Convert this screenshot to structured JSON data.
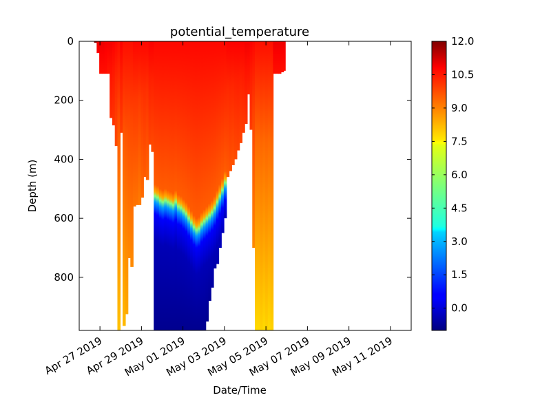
{
  "chart_data": {
    "type": "heatmap",
    "title": "potential_temperature",
    "xlabel": "Date/Time",
    "ylabel": "Depth (m)",
    "x_ticks": [
      "Apr 27 2019",
      "Apr 29 2019",
      "May 01 2019",
      "May 03 2019",
      "May 05 2019",
      "May 07 2019",
      "May 09 2019",
      "May 11 2019"
    ],
    "x_start": "2019-04-26T00:00",
    "x_end": "2019-05-12T00:00",
    "y_ticks": [
      0,
      200,
      400,
      600,
      800
    ],
    "ylim": [
      980,
      0
    ],
    "y_inverted": true,
    "colorbar": {
      "colormap": "jet",
      "vmin": -1.0,
      "vmax": 12.0,
      "ticks": [
        "12.0",
        "10.5",
        "9.0",
        "7.5",
        "6.0",
        "4.5",
        "3.0",
        "1.5",
        "0.0"
      ]
    },
    "grid": false,
    "legend": "none",
    "profiles": [
      {
        "time": "2019-04-26T19:00",
        "max_depth": 5,
        "surface_temp": 11.8,
        "deep_temp": 11.8
      },
      {
        "time": "2019-04-26T22:00",
        "max_depth": 40,
        "surface_temp": 10.6,
        "deep_temp": 10.4
      },
      {
        "time": "2019-04-27T01:00",
        "max_depth": 110,
        "surface_temp": 10.6,
        "deep_temp": 10.2
      },
      {
        "time": "2019-04-27T04:00",
        "max_depth": 110,
        "surface_temp": 10.6,
        "deep_temp": 10.2
      },
      {
        "time": "2019-04-27T07:00",
        "max_depth": 110,
        "surface_temp": 10.5,
        "deep_temp": 10.2
      },
      {
        "time": "2019-04-27T10:00",
        "max_depth": 110,
        "surface_temp": 10.5,
        "deep_temp": 10.1
      },
      {
        "time": "2019-04-27T13:00",
        "max_depth": 260,
        "surface_temp": 10.5,
        "deep_temp": 9.8
      },
      {
        "time": "2019-04-27T16:00",
        "max_depth": 285,
        "surface_temp": 10.4,
        "deep_temp": 9.7
      },
      {
        "time": "2019-04-27T19:00",
        "max_depth": 355,
        "surface_temp": 10.3,
        "deep_temp": 9.4
      },
      {
        "time": "2019-04-27T22:00",
        "max_depth": 980,
        "surface_temp": 10.2,
        "deep_temp": 7.9
      },
      {
        "time": "2019-04-28T01:00",
        "max_depth": 310,
        "surface_temp": 10.4,
        "deep_temp": 9.6
      },
      {
        "time": "2019-04-28T04:00",
        "max_depth": 965,
        "surface_temp": 10.2,
        "deep_temp": 8.0
      },
      {
        "time": "2019-04-28T07:00",
        "max_depth": 925,
        "surface_temp": 10.2,
        "deep_temp": 8.2
      },
      {
        "time": "2019-04-28T10:00",
        "max_depth": 735,
        "surface_temp": 10.2,
        "deep_temp": 8.6
      },
      {
        "time": "2019-04-28T13:00",
        "max_depth": 765,
        "surface_temp": 10.2,
        "deep_temp": 8.6
      },
      {
        "time": "2019-04-28T16:00",
        "max_depth": 560,
        "surface_temp": 10.3,
        "deep_temp": 8.9
      },
      {
        "time": "2019-04-28T19:00",
        "max_depth": 555,
        "surface_temp": 10.3,
        "deep_temp": 8.9
      },
      {
        "time": "2019-04-28T22:00",
        "max_depth": 555,
        "surface_temp": 10.3,
        "deep_temp": 8.8
      },
      {
        "time": "2019-04-29T01:00",
        "max_depth": 530,
        "surface_temp": 10.3,
        "deep_temp": 9.0
      },
      {
        "time": "2019-04-29T04:00",
        "max_depth": 460,
        "surface_temp": 10.3,
        "deep_temp": 9.2
      },
      {
        "time": "2019-04-29T07:00",
        "max_depth": 470,
        "surface_temp": 10.3,
        "deep_temp": 9.1
      },
      {
        "time": "2019-04-29T10:00",
        "max_depth": 350,
        "surface_temp": 10.4,
        "deep_temp": 9.5
      },
      {
        "time": "2019-04-29T13:00",
        "max_depth": 375,
        "surface_temp": 10.4,
        "deep_temp": 9.4
      },
      {
        "time": "2019-04-29T16:00",
        "max_depth": 980,
        "surface_temp": 10.3,
        "deep_temp": -0.8,
        "thermocline_depth": 525
      },
      {
        "time": "2019-04-29T19:00",
        "max_depth": 980,
        "surface_temp": 10.3,
        "deep_temp": -0.8,
        "thermocline_depth": 530
      },
      {
        "time": "2019-04-29T22:00",
        "max_depth": 980,
        "surface_temp": 10.3,
        "deep_temp": -0.8,
        "thermocline_depth": 540
      },
      {
        "time": "2019-04-30T01:00",
        "max_depth": 980,
        "surface_temp": 10.3,
        "deep_temp": -0.8,
        "thermocline_depth": 545
      },
      {
        "time": "2019-04-30T04:00",
        "max_depth": 980,
        "surface_temp": 10.3,
        "deep_temp": -0.8,
        "thermocline_depth": 540
      },
      {
        "time": "2019-04-30T07:00",
        "max_depth": 980,
        "surface_temp": 10.3,
        "deep_temp": -0.8,
        "thermocline_depth": 545
      },
      {
        "time": "2019-04-30T10:00",
        "max_depth": 980,
        "surface_temp": 10.3,
        "deep_temp": -0.8,
        "thermocline_depth": 550
      },
      {
        "time": "2019-04-30T13:00",
        "max_depth": 980,
        "surface_temp": 10.3,
        "deep_temp": -0.8,
        "thermocline_depth": 555
      },
      {
        "time": "2019-04-30T16:00",
        "max_depth": 980,
        "surface_temp": 10.3,
        "deep_temp": -0.8,
        "thermocline_depth": 545
      },
      {
        "time": "2019-04-30T19:00",
        "max_depth": 980,
        "surface_temp": 10.3,
        "deep_temp": -0.8,
        "thermocline_depth": 560
      },
      {
        "time": "2019-04-30T22:00",
        "max_depth": 980,
        "surface_temp": 10.3,
        "deep_temp": -0.8,
        "thermocline_depth": 565
      },
      {
        "time": "2019-05-01T01:00",
        "max_depth": 980,
        "surface_temp": 10.3,
        "deep_temp": -0.8,
        "thermocline_depth": 575
      },
      {
        "time": "2019-05-01T04:00",
        "max_depth": 980,
        "surface_temp": 10.3,
        "deep_temp": -0.8,
        "thermocline_depth": 585
      },
      {
        "time": "2019-05-01T07:00",
        "max_depth": 980,
        "surface_temp": 10.3,
        "deep_temp": -0.8,
        "thermocline_depth": 600
      },
      {
        "time": "2019-05-01T10:00",
        "max_depth": 980,
        "surface_temp": 10.3,
        "deep_temp": -0.8,
        "thermocline_depth": 615
      },
      {
        "time": "2019-05-01T13:00",
        "max_depth": 980,
        "surface_temp": 10.3,
        "deep_temp": -0.8,
        "thermocline_depth": 630
      },
      {
        "time": "2019-05-01T16:00",
        "max_depth": 980,
        "surface_temp": 10.3,
        "deep_temp": -0.8,
        "thermocline_depth": 640
      },
      {
        "time": "2019-05-01T19:00",
        "max_depth": 980,
        "surface_temp": 10.3,
        "deep_temp": -0.8,
        "thermocline_depth": 635
      },
      {
        "time": "2019-05-01T22:00",
        "max_depth": 980,
        "surface_temp": 10.3,
        "deep_temp": -0.8,
        "thermocline_depth": 620
      },
      {
        "time": "2019-05-02T01:00",
        "max_depth": 980,
        "surface_temp": 10.3,
        "deep_temp": -0.8,
        "thermocline_depth": 610
      },
      {
        "time": "2019-05-02T04:00",
        "max_depth": 950,
        "surface_temp": 10.3,
        "deep_temp": -0.8,
        "thermocline_depth": 600
      },
      {
        "time": "2019-05-02T07:00",
        "max_depth": 880,
        "surface_temp": 10.3,
        "deep_temp": -0.7,
        "thermocline_depth": 590
      },
      {
        "time": "2019-05-02T10:00",
        "max_depth": 835,
        "surface_temp": 10.3,
        "deep_temp": -0.6,
        "thermocline_depth": 580
      },
      {
        "time": "2019-05-02T13:00",
        "max_depth": 770,
        "surface_temp": 10.3,
        "deep_temp": -0.5,
        "thermocline_depth": 565
      },
      {
        "time": "2019-05-02T16:00",
        "max_depth": 755,
        "surface_temp": 10.3,
        "deep_temp": -0.4,
        "thermocline_depth": 545
      },
      {
        "time": "2019-05-02T19:00",
        "max_depth": 700,
        "surface_temp": 10.3,
        "deep_temp": -0.2,
        "thermocline_depth": 525
      },
      {
        "time": "2019-05-02T22:00",
        "max_depth": 650,
        "surface_temp": 10.3,
        "deep_temp": 0.2,
        "thermocline_depth": 505
      },
      {
        "time": "2019-05-03T01:00",
        "max_depth": 600,
        "surface_temp": 10.3,
        "deep_temp": 0.8,
        "thermocline_depth": 480
      },
      {
        "time": "2019-05-03T04:00",
        "max_depth": 460,
        "surface_temp": 10.4,
        "deep_temp": 9.2
      },
      {
        "time": "2019-05-03T07:00",
        "max_depth": 440,
        "surface_temp": 10.4,
        "deep_temp": 9.3
      },
      {
        "time": "2019-05-03T10:00",
        "max_depth": 420,
        "surface_temp": 10.4,
        "deep_temp": 9.3
      },
      {
        "time": "2019-05-03T13:00",
        "max_depth": 400,
        "surface_temp": 10.4,
        "deep_temp": 9.4
      },
      {
        "time": "2019-05-03T16:00",
        "max_depth": 370,
        "surface_temp": 10.4,
        "deep_temp": 9.5
      },
      {
        "time": "2019-05-03T19:00",
        "max_depth": 345,
        "surface_temp": 10.4,
        "deep_temp": 9.5
      },
      {
        "time": "2019-05-03T22:00",
        "max_depth": 310,
        "surface_temp": 10.4,
        "deep_temp": 9.6
      },
      {
        "time": "2019-05-04T01:00",
        "max_depth": 280,
        "surface_temp": 10.5,
        "deep_temp": 9.7
      },
      {
        "time": "2019-05-04T04:00",
        "max_depth": 180,
        "surface_temp": 10.5,
        "deep_temp": 9.9
      },
      {
        "time": "2019-05-04T07:00",
        "max_depth": 300,
        "surface_temp": 10.4,
        "deep_temp": 9.6
      },
      {
        "time": "2019-05-04T10:00",
        "max_depth": 700,
        "surface_temp": 10.3,
        "deep_temp": 8.6
      },
      {
        "time": "2019-05-04T13:00",
        "max_depth": 980,
        "surface_temp": 10.2,
        "deep_temp": 7.6
      },
      {
        "time": "2019-05-04T16:00",
        "max_depth": 980,
        "surface_temp": 10.2,
        "deep_temp": 7.6
      },
      {
        "time": "2019-05-04T19:00",
        "max_depth": 980,
        "surface_temp": 10.2,
        "deep_temp": 7.7
      },
      {
        "time": "2019-05-04T22:00",
        "max_depth": 980,
        "surface_temp": 10.2,
        "deep_temp": 7.6
      },
      {
        "time": "2019-05-05T01:00",
        "max_depth": 980,
        "surface_temp": 10.2,
        "deep_temp": 7.7
      },
      {
        "time": "2019-05-05T04:00",
        "max_depth": 980,
        "surface_temp": 10.2,
        "deep_temp": 7.6
      },
      {
        "time": "2019-05-05T07:00",
        "max_depth": 980,
        "surface_temp": 10.2,
        "deep_temp": 7.7
      },
      {
        "time": "2019-05-05T10:00",
        "max_depth": 110,
        "surface_temp": 10.6,
        "deep_temp": 10.2
      },
      {
        "time": "2019-05-05T13:00",
        "max_depth": 110,
        "surface_temp": 10.6,
        "deep_temp": 10.2
      },
      {
        "time": "2019-05-05T16:00",
        "max_depth": 110,
        "surface_temp": 10.6,
        "deep_temp": 10.2
      },
      {
        "time": "2019-05-05T19:00",
        "max_depth": 105,
        "surface_temp": 10.6,
        "deep_temp": 10.2
      },
      {
        "time": "2019-05-05T21:00",
        "max_depth": 100,
        "surface_temp": 10.6,
        "deep_temp": 10.2
      }
    ]
  }
}
